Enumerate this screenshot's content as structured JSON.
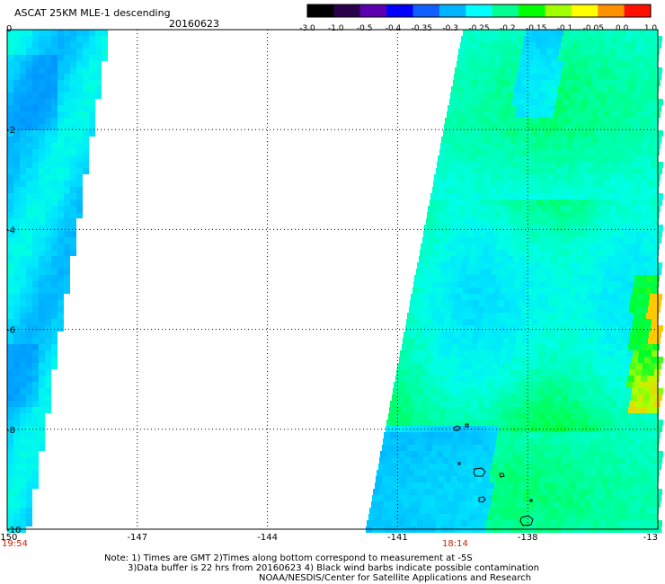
{
  "header": {
    "title": "ASCAT 25KM MLE-1 descending",
    "date": "20160623"
  },
  "colorbar": {
    "labels": [
      "-3.0",
      "-1.0",
      "-0.5",
      "-0.4",
      "-0.35",
      "-0.3",
      "-0.25",
      "-0.2",
      "-0.15",
      "-0.1",
      "-0.05",
      "0.0",
      "1.0"
    ],
    "colors": [
      "#000000",
      "#2a004a",
      "#5a00b0",
      "#0000ff",
      "#1060ff",
      "#00b4ff",
      "#00ffff",
      "#00ff90",
      "#00ff00",
      "#a0ff00",
      "#ffff00",
      "#ff9000",
      "#ff1000"
    ]
  },
  "map": {
    "lon_labels": [
      "-150",
      "-147",
      "-144",
      "-141",
      "-138",
      "-13"
    ],
    "lat_labels": [
      "0",
      "-2",
      "-4",
      "-6",
      "-8",
      "-10"
    ],
    "pass_times": [
      "19:54",
      "18:14"
    ]
  },
  "notes": {
    "line1": "Note: 1) Times are GMT 2)Times along bottom correspond to measurement at -5S",
    "line2": "3)Data buffer is 22 hrs from 20160623 4) Black wind barbs indicate possible contamination",
    "line3": "NOAA/NESDIS/Center for Satellite Applications and Research"
  }
}
